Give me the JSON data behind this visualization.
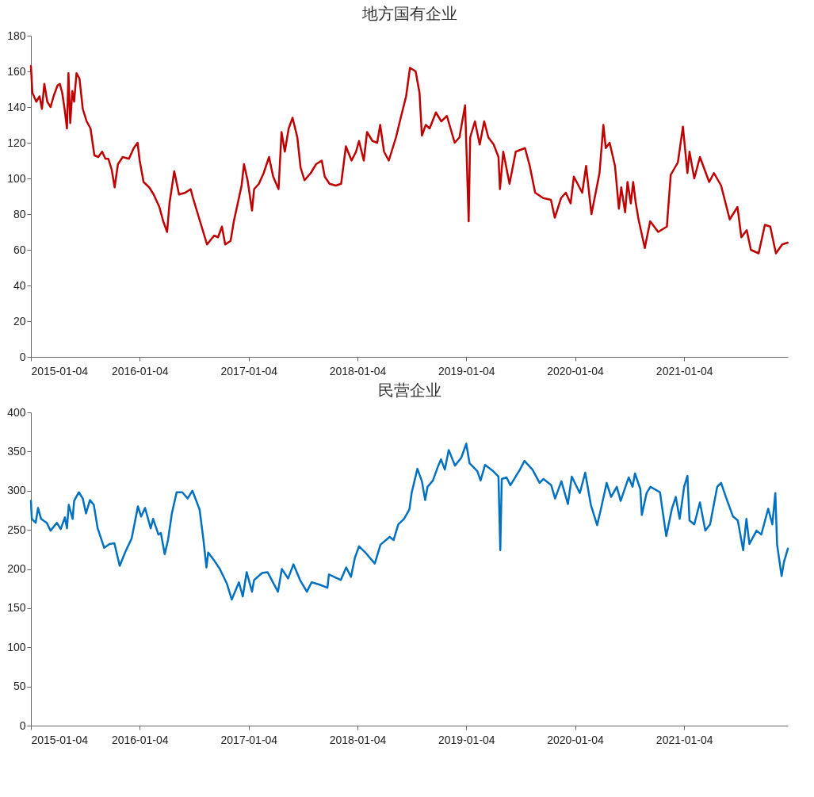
{
  "chart_data": [
    {
      "type": "line",
      "title": "地方国有企业",
      "xlim": [
        "2015-01-04",
        "2021-12-18"
      ],
      "xticks": [
        "2015-01-04",
        "2016-01-04",
        "2017-01-04",
        "2018-01-04",
        "2019-01-04",
        "2020-01-04",
        "2021-01-04"
      ],
      "ylim": [
        0,
        180
      ],
      "yticks": [
        0,
        20,
        40,
        60,
        80,
        100,
        120,
        140,
        160,
        180
      ],
      "x": [
        "2015-01-04",
        "2015-01-09",
        "2015-01-22",
        "2015-02-02",
        "2015-02-10",
        "2015-02-18",
        "2015-02-28",
        "2015-03-11",
        "2015-03-21",
        "2015-04-03",
        "2015-04-11",
        "2015-04-19",
        "2015-04-27",
        "2015-05-05",
        "2015-05-10",
        "2015-05-16",
        "2015-05-23",
        "2015-05-29",
        "2015-06-06",
        "2015-06-16",
        "2015-06-27",
        "2015-07-10",
        "2015-07-23",
        "2015-08-05",
        "2015-08-18",
        "2015-08-31",
        "2015-09-11",
        "2015-09-21",
        "2015-10-02",
        "2015-10-12",
        "2015-10-23",
        "2015-11-08",
        "2015-11-29",
        "2015-12-15",
        "2015-12-28",
        "2016-01-04",
        "2016-01-17",
        "2016-02-05",
        "2016-02-20",
        "2016-03-10",
        "2016-03-23",
        "2016-04-05",
        "2016-04-13",
        "2016-04-29",
        "2016-05-15",
        "2016-06-05",
        "2016-06-23",
        "2016-07-01",
        "2016-07-19",
        "2016-08-17",
        "2016-09-10",
        "2016-09-23",
        "2016-10-06",
        "2016-10-17",
        "2016-11-04",
        "2016-11-15",
        "2016-11-28",
        "2016-12-11",
        "2016-12-19",
        "2016-12-31",
        "2017-01-15",
        "2017-01-22",
        "2017-02-07",
        "2017-02-23",
        "2017-03-13",
        "2017-03-27",
        "2017-04-14",
        "2017-04-24",
        "2017-05-05",
        "2017-05-18",
        "2017-05-31",
        "2017-06-16",
        "2017-06-27",
        "2017-07-10",
        "2017-07-31",
        "2017-08-18",
        "2017-09-06",
        "2017-09-16",
        "2017-10-02",
        "2017-10-23",
        "2017-11-10",
        "2017-11-26",
        "2017-12-15",
        "2017-12-30",
        "2018-01-09",
        "2018-01-25",
        "2018-02-05",
        "2018-02-23",
        "2018-03-11",
        "2018-03-21",
        "2018-04-03",
        "2018-04-19",
        "2018-05-13",
        "2018-05-29",
        "2018-06-16",
        "2018-06-29",
        "2018-07-18",
        "2018-07-31",
        "2018-08-08",
        "2018-08-21",
        "2018-09-03",
        "2018-09-24",
        "2018-10-12",
        "2018-10-31",
        "2018-11-26",
        "2018-12-12",
        "2018-12-31",
        "2019-01-12",
        "2019-01-17",
        "2019-02-02",
        "2019-02-18",
        "2019-03-05",
        "2019-03-19",
        "2019-04-06",
        "2019-04-22",
        "2019-04-27",
        "2019-05-08",
        "2019-05-29",
        "2019-06-19",
        "2019-07-20",
        "2019-08-05",
        "2019-08-23",
        "2019-09-19",
        "2019-10-15",
        "2019-10-28",
        "2019-11-18",
        "2019-12-04",
        "2019-12-20",
        "2019-12-31",
        "2020-01-28",
        "2020-02-10",
        "2020-02-28",
        "2020-03-26",
        "2020-04-08",
        "2020-04-16",
        "2020-04-29",
        "2020-05-17",
        "2020-05-30",
        "2020-06-07",
        "2020-06-20",
        "2020-06-28",
        "2020-07-09",
        "2020-07-17",
        "2020-07-25",
        "2020-08-04",
        "2020-08-25",
        "2020-09-12",
        "2020-10-09",
        "2020-11-07",
        "2020-11-20",
        "2020-12-14",
        "2020-12-31",
        "2021-01-15",
        "2021-01-22",
        "2021-02-07",
        "2021-02-26",
        "2021-03-29",
        "2021-04-14",
        "2021-05-08",
        "2021-06-06",
        "2021-07-02",
        "2021-07-15",
        "2021-08-02",
        "2021-08-16",
        "2021-09-11",
        "2021-10-02",
        "2021-10-20",
        "2021-11-08",
        "2021-11-29",
        "2021-12-17"
      ],
      "series": [
        {
          "color": "#c00000",
          "values": [
            163,
            148,
            143,
            146,
            139,
            153,
            143,
            140,
            146,
            152,
            153,
            148,
            139,
            128,
            159,
            131,
            149,
            143,
            159,
            156,
            139,
            132,
            128,
            113,
            112,
            115,
            111,
            111,
            105,
            95,
            108,
            112,
            111,
            117,
            120,
            110,
            98,
            95,
            91,
            84,
            76,
            70,
            86,
            104,
            91,
            92,
            94,
            89,
            79,
            63,
            68,
            67,
            73,
            63,
            65,
            76,
            86,
            96,
            108,
            99,
            82,
            94,
            97,
            103,
            112,
            101,
            94,
            126,
            115,
            128,
            134,
            123,
            106,
            99,
            103,
            108,
            110,
            101,
            97,
            96,
            97,
            118,
            110,
            115,
            121,
            110,
            126,
            121,
            120,
            130,
            115,
            110,
            123,
            134,
            146,
            162,
            160,
            148,
            124,
            130,
            128,
            137,
            132,
            135,
            120,
            123,
            141,
            76,
            123,
            132,
            119,
            132,
            123,
            119,
            112,
            94,
            115,
            97,
            115,
            117,
            107,
            92,
            89,
            88,
            78,
            89,
            92,
            86,
            101,
            92,
            107,
            80,
            103,
            130,
            117,
            120,
            107,
            83,
            95,
            81,
            98,
            86,
            98,
            87,
            77,
            61,
            76,
            70,
            73,
            102,
            109,
            129,
            103,
            115,
            100,
            112,
            98,
            103,
            96,
            77,
            84,
            67,
            71,
            60,
            58,
            74,
            73,
            58,
            63,
            64
          ]
        }
      ]
    },
    {
      "type": "line",
      "title": "民营企业",
      "xlim": [
        "2015-01-04",
        "2021-12-18"
      ],
      "xticks": [
        "2015-01-04",
        "2016-01-04",
        "2017-01-04",
        "2018-01-04",
        "2019-01-04",
        "2020-01-04",
        "2021-01-04"
      ],
      "ylim": [
        0,
        400
      ],
      "yticks": [
        0,
        50,
        100,
        150,
        200,
        250,
        300,
        350,
        400
      ],
      "x": [
        "2015-01-04",
        "2015-01-07",
        "2015-01-20",
        "2015-01-28",
        "2015-02-07",
        "2015-02-26",
        "2015-03-11",
        "2015-04-01",
        "2015-04-14",
        "2015-04-28",
        "2015-05-05",
        "2015-05-11",
        "2015-05-24",
        "2015-05-29",
        "2015-06-14",
        "2015-06-27",
        "2015-07-08",
        "2015-07-21",
        "2015-08-03",
        "2015-08-16",
        "2015-09-07",
        "2015-09-25",
        "2015-10-11",
        "2015-10-29",
        "2015-11-17",
        "2015-12-08",
        "2015-12-21",
        "2015-12-29",
        "2016-01-09",
        "2016-01-22",
        "2016-02-10",
        "2016-02-18",
        "2016-03-07",
        "2016-03-15",
        "2016-03-28",
        "2016-04-08",
        "2016-04-21",
        "2016-05-07",
        "2016-05-26",
        "2016-06-13",
        "2016-06-29",
        "2016-07-23",
        "2016-08-05",
        "2016-08-15",
        "2016-08-21",
        "2016-09-08",
        "2016-09-29",
        "2016-10-23",
        "2016-11-08",
        "2016-12-02",
        "2016-12-15",
        "2016-12-28",
        "2017-01-15",
        "2017-01-22",
        "2017-02-18",
        "2017-03-08",
        "2017-04-12",
        "2017-04-25",
        "2017-05-16",
        "2017-06-03",
        "2017-06-25",
        "2017-07-18",
        "2017-08-03",
        "2017-08-30",
        "2017-09-25",
        "2017-09-30",
        "2017-11-09",
        "2017-11-27",
        "2017-12-13",
        "2017-12-26",
        "2018-01-09",
        "2018-01-28",
        "2018-03-03",
        "2018-03-22",
        "2018-04-22",
        "2018-05-05",
        "2018-05-21",
        "2018-06-09",
        "2018-06-27",
        "2018-07-05",
        "2018-07-24",
        "2018-08-08",
        "2018-08-19",
        "2018-08-27",
        "2018-09-14",
        "2018-09-30",
        "2018-10-11",
        "2018-10-24",
        "2018-11-06",
        "2018-11-27",
        "2018-12-18",
        "2019-01-04",
        "2019-01-15",
        "2019-02-10",
        "2019-02-21",
        "2019-03-08",
        "2019-04-04",
        "2019-04-22",
        "2019-04-28",
        "2019-05-03",
        "2019-05-19",
        "2019-06-01",
        "2019-07-03",
        "2019-07-18",
        "2019-08-14",
        "2019-09-07",
        "2019-09-20",
        "2019-10-16",
        "2019-10-29",
        "2019-11-19",
        "2019-12-11",
        "2019-12-24",
        "2020-01-20",
        "2020-02-07",
        "2020-02-26",
        "2020-03-18",
        "2020-03-31",
        "2020-04-19",
        "2020-05-04",
        "2020-05-23",
        "2020-06-05",
        "2020-07-02",
        "2020-07-15",
        "2020-07-23",
        "2020-08-10",
        "2020-08-15",
        "2020-08-31",
        "2020-09-13",
        "2020-10-15",
        "2020-10-23",
        "2020-11-05",
        "2020-11-24",
        "2020-12-07",
        "2020-12-20",
        "2021-01-04",
        "2021-01-15",
        "2021-01-22",
        "2021-02-07",
        "2021-02-26",
        "2021-03-16",
        "2021-04-01",
        "2021-04-25",
        "2021-05-08",
        "2021-05-24",
        "2021-06-17",
        "2021-07-03",
        "2021-07-21",
        "2021-08-01",
        "2021-08-11",
        "2021-09-04",
        "2021-09-20",
        "2021-10-13",
        "2021-10-27",
        "2021-11-06",
        "2021-11-12",
        "2021-11-27",
        "2021-12-05",
        "2021-12-18"
      ],
      "series": [
        {
          "color": "#0070c0",
          "values": [
            287,
            264,
            259,
            278,
            264,
            259,
            249,
            259,
            251,
            266,
            252,
            282,
            264,
            287,
            298,
            290,
            271,
            288,
            282,
            252,
            227,
            232,
            233,
            204,
            222,
            239,
            264,
            280,
            267,
            278,
            252,
            264,
            244,
            246,
            219,
            237,
            271,
            298,
            298,
            290,
            300,
            276,
            237,
            202,
            221,
            212,
            200,
            181,
            161,
            183,
            165,
            196,
            171,
            186,
            195,
            196,
            171,
            200,
            188,
            206,
            186,
            171,
            183,
            180,
            176,
            193,
            186,
            202,
            190,
            214,
            229,
            222,
            207,
            231,
            241,
            237,
            257,
            264,
            276,
            298,
            328,
            312,
            288,
            305,
            313,
            330,
            340,
            327,
            352,
            332,
            342,
            360,
            335,
            325,
            313,
            333,
            325,
            318,
            224,
            315,
            317,
            307,
            327,
            338,
            327,
            310,
            315,
            307,
            290,
            312,
            283,
            318,
            297,
            323,
            282,
            256,
            277,
            310,
            292,
            305,
            287,
            317,
            305,
            322,
            302,
            269,
            297,
            305,
            298,
            276,
            242,
            277,
            292,
            264,
            305,
            319,
            262,
            257,
            285,
            249,
            257,
            305,
            310,
            292,
            267,
            262,
            224,
            264,
            232,
            249,
            244,
            277,
            257,
            297,
            231,
            191,
            209,
            226
          ]
        }
      ]
    }
  ]
}
